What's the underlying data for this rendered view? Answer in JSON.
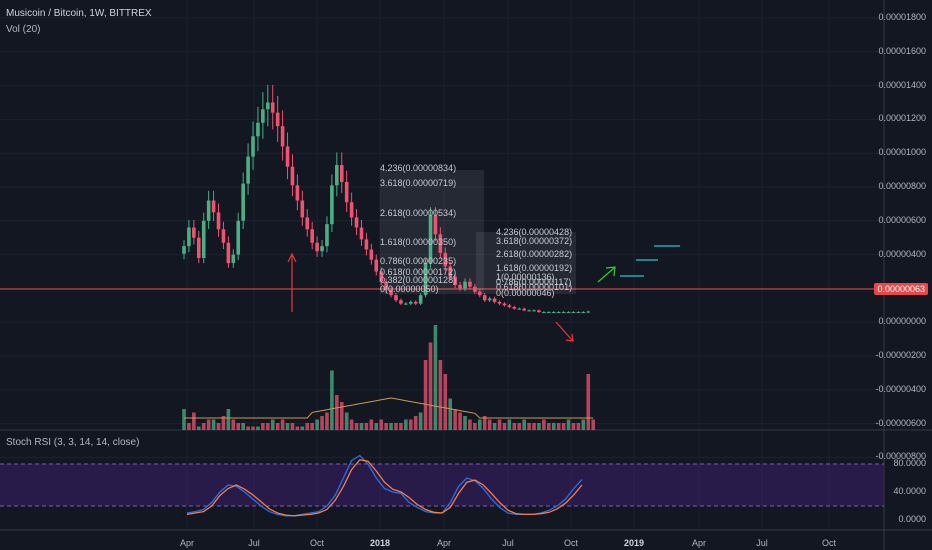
{
  "header": {
    "symbol_title": "Musicoin / Bitcoin, 1W, BITTREX",
    "volume_label": "Vol (20)",
    "indicator_label": "Stoch RSI (3, 3, 14, 14, close)"
  },
  "price_axis": {
    "ticks": [
      "0.00001800",
      "0.00001600",
      "0.00001400",
      "0.00001200",
      "0.00001000",
      "0.00000800",
      "0.00000600",
      "0.00000400",
      "0.00000200",
      "0.00000000",
      "-0.00000200",
      "-0.00000400",
      "-0.00000600",
      "-0.00000800"
    ],
    "last_price_label": "0.00000063"
  },
  "rsi_axis": {
    "ticks": [
      "80.0000",
      "40.0000",
      "0.0000"
    ]
  },
  "time_axis": {
    "ticks": [
      "Apr",
      "Jul",
      "Oct",
      "2018",
      "Apr",
      "Jul",
      "Oct",
      "2019",
      "Apr",
      "Jul",
      "Oct"
    ]
  },
  "fib_left": [
    "4.236(0.00000834)",
    "3.618(0.00000719)",
    "2.618(0.00000534)",
    "1.618(0.00000350)",
    "0.786(0.00000235)",
    "0.618(0.00000172)",
    "0.382(0.00000128)",
    "0(0.00000050)"
  ],
  "fib_right": [
    "4.236(0.00000428)",
    "3.618(0.00000372)",
    "2.618(0.00000282)",
    "1.618(0.00000192)",
    "1(0.00000136)",
    "0.786(0.00000117)",
    "0.618(0.00000101)",
    "0(0.00000046)"
  ],
  "colors": {
    "background": "#131722",
    "up": "#4caf84",
    "down": "#ef5370",
    "price_line": "#e94848",
    "rsi_k": "#2e6fdb",
    "rsi_d": "#f57c4c",
    "rsi_band": "#3b1f6b",
    "vol_ma": "#c89b52",
    "arrow_red": "#e53935",
    "arrow_green": "#33cc33",
    "target_lines": "#26c6da"
  },
  "chart_data": [
    {
      "type": "candlestick",
      "title": "Musicoin / Bitcoin, 1W, BITTREX",
      "ylim": [
        -9e-06,
        1.85e-05
      ],
      "x_start": "2017-03",
      "closes": [
        4.5e-06,
        5.6e-06,
        5e-06,
        3.8e-06,
        6e-06,
        7.2e-06,
        6.5e-06,
        5.5e-06,
        4.7e-06,
        3.5e-06,
        4e-06,
        6e-06,
        8.2e-06,
        9.8e-06,
        1.1e-05,
        1.18e-05,
        1.26e-05,
        1.3e-05,
        1.24e-05,
        1.16e-05,
        1.04e-05,
        9.2e-06,
        8.1e-06,
        7.2e-06,
        6.2e-06,
        5.5e-06,
        4.7e-06,
        4.2e-06,
        4.5e-06,
        5.8e-06,
        8.1e-06,
        9.3e-06,
        8.3e-06,
        7.1e-06,
        6.2e-06,
        5.6e-06,
        4.9e-06,
        4.3e-06,
        3.7e-06,
        3e-06,
        2.4e-06,
        1.9e-06,
        1.6e-06,
        1.3e-06,
        1.1e-06,
        1.1e-06,
        1.2e-06,
        1.1e-06,
        1.6e-06,
        3.5e-06,
        6.3e-06,
        5.2e-06,
        4.1e-06,
        3.3e-06,
        2.7e-06,
        2.2e-06,
        2e-06,
        2.4e-06,
        2.1e-06,
        1.8e-06,
        1.6e-06,
        1.3e-06,
        1.4e-06,
        1.2e-06,
        1.1e-06,
        1e-06,
        9e-07,
        8e-07,
        8e-07,
        7e-07,
        7e-07,
        7e-07,
        6e-07,
        6e-07,
        6e-07,
        6e-07,
        6e-07,
        6e-07,
        6e-07,
        6e-07,
        6e-07,
        6e-07,
        6.3e-07
      ],
      "volume_ma_label": "Vol (20)"
    },
    {
      "type": "line",
      "title": "Stoch RSI (3, 3, 14, 14, close)",
      "ylim": [
        0,
        100
      ],
      "series": [
        {
          "name": "K",
          "values": [
            10,
            12,
            15,
            25,
            40,
            50,
            48,
            40,
            30,
            20,
            12,
            8,
            6,
            6,
            8,
            10,
            12,
            20,
            35,
            60,
            85,
            92,
            80,
            60,
            45,
            40,
            38,
            25,
            18,
            12,
            10,
            10,
            25,
            48,
            60,
            56,
            45,
            30,
            18,
            10,
            8,
            8,
            8,
            10,
            14,
            20,
            30,
            45,
            58
          ]
        },
        {
          "name": "D",
          "values": [
            8,
            10,
            12,
            20,
            35,
            45,
            50,
            44,
            36,
            26,
            16,
            10,
            7,
            6,
            7,
            8,
            10,
            15,
            28,
            48,
            72,
            86,
            84,
            70,
            54,
            44,
            40,
            32,
            22,
            15,
            11,
            10,
            18,
            38,
            54,
            57,
            50,
            38,
            25,
            14,
            9,
            8,
            8,
            9,
            11,
            16,
            24,
            36,
            50
          ]
        }
      ],
      "reference_lines": [
        80,
        20
      ]
    }
  ]
}
